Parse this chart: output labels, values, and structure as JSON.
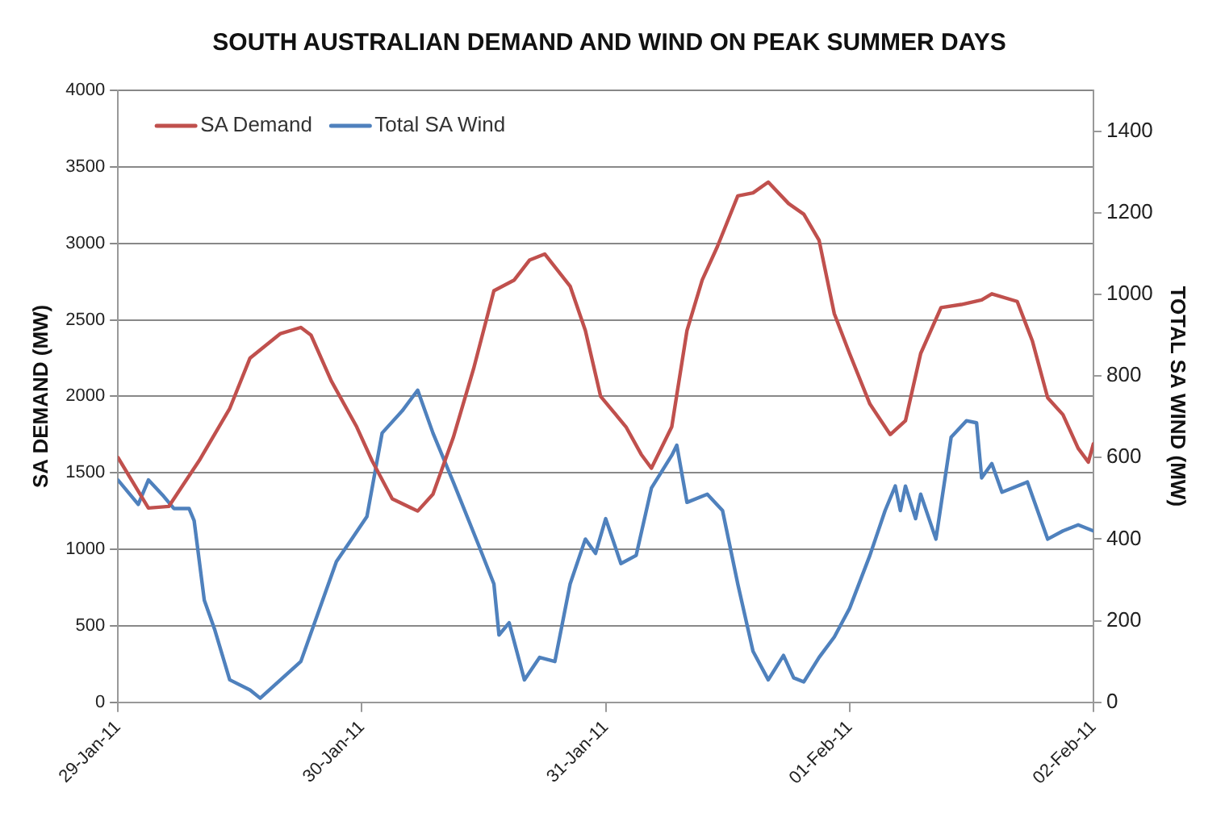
{
  "chart_data": {
    "type": "line",
    "title": "SOUTH AUSTRALIAN DEMAND AND WIND ON PEAK SUMMER DAYS",
    "ylabel": "SA DEMAND (MW)",
    "y2label": "TOTAL SA WIND (MW)",
    "xlim": [
      "--01-29",
      "--02-02"
    ],
    "xticks": [
      {
        "value": "--01-29",
        "label": "29-Jan-11"
      },
      {
        "value": "--01-30",
        "label": "30-Jan-11"
      },
      {
        "value": "--01-31",
        "label": "31-Jan-11"
      },
      {
        "value": "--02-01",
        "label": "01-Feb-11"
      },
      {
        "value": "--02-02",
        "label": "02-Feb-11"
      }
    ],
    "ylim": [
      0,
      4000
    ],
    "yticks": [
      0,
      500,
      1000,
      1500,
      2000,
      2500,
      3000,
      3500,
      4000
    ],
    "y2lim": [
      0,
      1500
    ],
    "y2ticks": [
      0,
      200,
      400,
      600,
      800,
      1000,
      1200,
      1400
    ],
    "grid": "y",
    "legend": "top left",
    "marker": "none",
    "line_style": "solid",
    "series": [
      {
        "name": "SA Demand",
        "color": "#c0504d",
        "x": [
          "--01-29T00:00",
          "--01-29T03:00",
          "--01-29T05:00",
          "--01-29T08:00",
          "--01-29T11:00",
          "--01-29T13:00",
          "--01-29T16:00",
          "--01-29T18:00",
          "--01-29T19:00",
          "--01-29T21:00",
          "--01-29T23:30",
          "--01-30T01:00",
          "--01-30T03:00",
          "--01-30T05:30",
          "--01-30T07:00",
          "--01-30T09:00",
          "--01-30T11:00",
          "--01-30T13:00",
          "--01-30T15:00",
          "--01-30T16:30",
          "--01-30T18:00",
          "--01-30T20:30",
          "--01-30T22:00",
          "--01-30T23:30",
          "--01-31T02:00",
          "--01-31T03:30",
          "--01-31T04:30",
          "--01-31T06:30",
          "--01-31T08:00",
          "--01-31T09:30",
          "--01-31T11:00",
          "--01-31T13:00",
          "--01-31T14:30",
          "--01-31T16:00",
          "--01-31T18:00",
          "--01-31T19:30",
          "--01-31T21:00",
          "--01-31T22:30",
          "--02-01T00:00",
          "--02-01T02:00",
          "--02-01T04:00",
          "--02-01T05:30",
          "--02-01T07:00",
          "--02-01T09:00",
          "--02-01T11:00",
          "--02-01T13:00",
          "--02-01T14:00",
          "--02-01T16:30",
          "--02-01T18:00",
          "--02-01T19:30",
          "--02-01T21:00",
          "--02-01T22:30",
          "--02-01T23:30",
          "--02-02T00:00"
        ],
        "values": [
          1600,
          1270,
          1280,
          1580,
          1920,
          2250,
          2410,
          2450,
          2400,
          2100,
          1800,
          1580,
          1330,
          1250,
          1360,
          1730,
          2180,
          2690,
          2760,
          2890,
          2930,
          2720,
          2430,
          2000,
          1800,
          1620,
          1530,
          1800,
          2430,
          2760,
          2980,
          3310,
          3330,
          3400,
          3260,
          3190,
          3020,
          2540,
          2280,
          1950,
          1750,
          1840,
          2280,
          2580,
          2600,
          2630,
          2670,
          2620,
          2360,
          1990,
          1880,
          1660,
          1570,
          1690
        ]
      },
      {
        "name": "Total SA Wind",
        "color": "#4f81bd",
        "axis": "y2",
        "x": [
          "--01-29T00:00",
          "--01-29T02:00",
          "--01-29T03:00",
          "--01-29T04:30",
          "--01-29T05:30",
          "--01-29T07:00",
          "--01-29T07:30",
          "--01-29T08:30",
          "--01-29T09:30",
          "--01-29T11:00",
          "--01-29T13:00",
          "--01-29T14:00",
          "--01-29T16:00",
          "--01-29T18:00",
          "--01-29T19:30",
          "--01-29T21:30",
          "--01-29T23:00",
          "--01-30T00:30",
          "--01-30T02:00",
          "--01-30T04:00",
          "--01-30T05:30",
          "--01-30T07:00",
          "--01-30T09:00",
          "--01-30T11:30",
          "--01-30T13:00",
          "--01-30T13:30",
          "--01-30T14:30",
          "--01-30T16:00",
          "--01-30T17:30",
          "--01-30T19:00",
          "--01-30T20:30",
          "--01-30T22:00",
          "--01-30T23:00",
          "--01-31T00:00",
          "--01-31T01:30",
          "--01-31T03:00",
          "--01-31T04:30",
          "--01-31T06:30",
          "--01-31T07:00",
          "--01-31T08:00",
          "--01-31T10:00",
          "--01-31T11:30",
          "--01-31T13:00",
          "--01-31T14:30",
          "--01-31T16:00",
          "--01-31T17:30",
          "--01-31T18:30",
          "--01-31T19:30",
          "--01-31T21:00",
          "--01-31T22:30",
          "--02-01T00:00",
          "--02-01T02:00",
          "--02-01T03:30",
          "--02-01T04:30",
          "--02-01T05:00",
          "--02-01T05:30",
          "--02-01T06:30",
          "--02-01T07:00",
          "--02-01T08:30",
          "--02-01T10:00",
          "--02-01T11:30",
          "--02-01T12:30",
          "--02-01T13:00",
          "--02-01T14:00",
          "--02-01T15:00",
          "--02-01T17:30",
          "--02-01T19:30",
          "--02-01T21:00",
          "--02-01T22:30",
          "--02-02T00:00"
        ],
        "values": [
          545,
          485,
          545,
          505,
          475,
          475,
          445,
          250,
          180,
          55,
          30,
          10,
          55,
          100,
          205,
          345,
          400,
          455,
          660,
          715,
          765,
          660,
          540,
          385,
          290,
          165,
          195,
          55,
          110,
          100,
          290,
          400,
          365,
          450,
          340,
          360,
          525,
          605,
          630,
          490,
          510,
          470,
          290,
          125,
          55,
          115,
          60,
          50,
          110,
          160,
          230,
          360,
          470,
          530,
          470,
          530,
          450,
          510,
          400,
          650,
          690,
          685,
          550,
          585,
          515,
          540,
          400,
          420,
          435,
          420
        ]
      }
    ]
  }
}
